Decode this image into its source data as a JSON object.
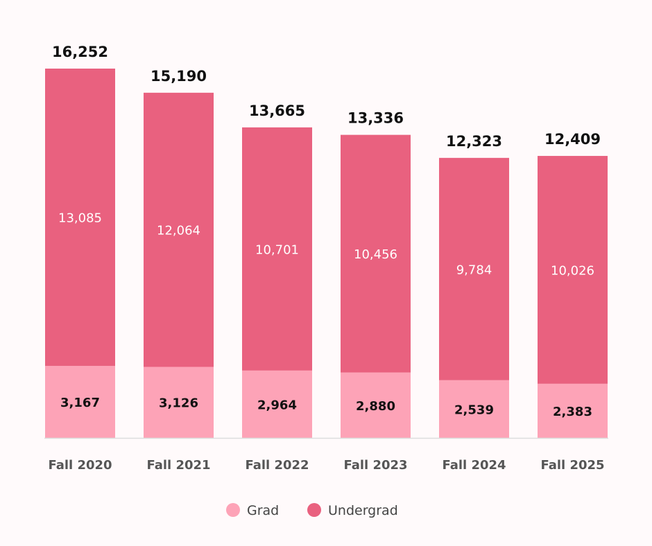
{
  "chart_data": {
    "type": "bar",
    "stacked": true,
    "categories": [
      "Fall 2020",
      "Fall 2021",
      "Fall 2022",
      "Fall 2023",
      "Fall 2024",
      "Fall 2025"
    ],
    "series": [
      {
        "name": "Grad",
        "color": "#fda3b7",
        "values": [
          3167,
          3126,
          2964,
          2880,
          2539,
          2383
        ],
        "labels": [
          "3,167",
          "3,126",
          "2,964",
          "2,880",
          "2,539",
          "2,383"
        ]
      },
      {
        "name": "Undergrad",
        "color": "#e9617f",
        "values": [
          13085,
          12064,
          10701,
          10456,
          9784,
          10026
        ],
        "labels": [
          "13,085",
          "12,064",
          "10,701",
          "10,456",
          "9,784",
          "10,026"
        ]
      }
    ],
    "totals": [
      16252,
      15190,
      13665,
      13336,
      12323,
      12409
    ],
    "total_labels": [
      "16,252",
      "15,190",
      "13,665",
      "13,336",
      "12,323",
      "12,409"
    ],
    "title": "",
    "xlabel": "",
    "ylabel": "",
    "ylim": [
      0,
      16252
    ],
    "grid": false,
    "legend_position": "bottom",
    "background": "#fffafb"
  }
}
